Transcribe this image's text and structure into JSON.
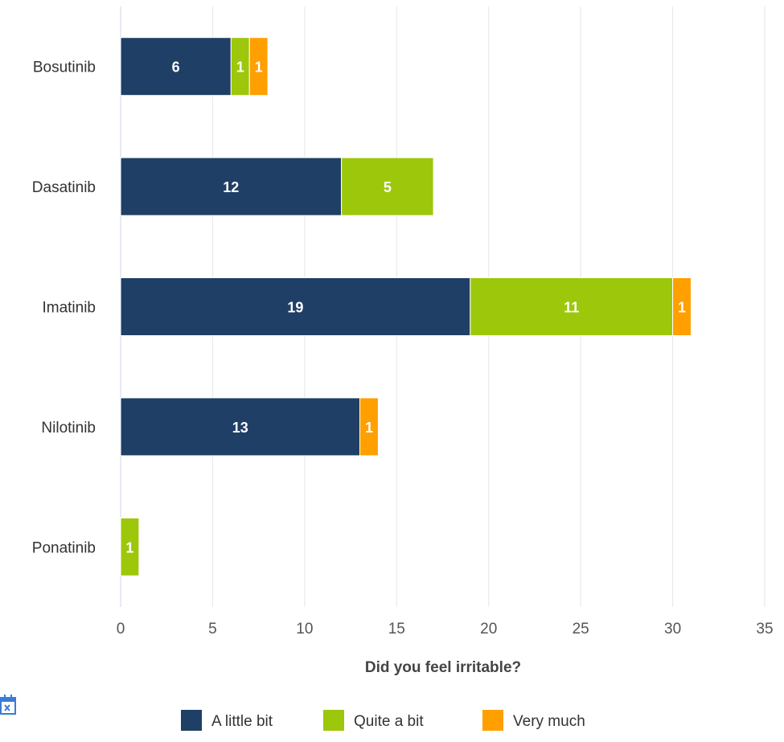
{
  "chart_data": {
    "type": "bar",
    "orientation": "horizontal",
    "stacked": true,
    "categories": [
      "Bosutinib",
      "Dasatinib",
      "Imatinib",
      "Nilotinib",
      "Ponatinib"
    ],
    "series": [
      {
        "name": "A little bit",
        "color": "#1f3f66",
        "values": [
          6,
          12,
          19,
          13,
          0
        ]
      },
      {
        "name": "Quite a bit",
        "color": "#9dc70b",
        "values": [
          1,
          5,
          11,
          0,
          1
        ]
      },
      {
        "name": "Very much",
        "color": "#ff9f00",
        "values": [
          1,
          0,
          1,
          1,
          0
        ]
      }
    ],
    "xlabel": "Did you feel irritable?",
    "ylabel": "",
    "xlim": [
      0,
      35
    ],
    "xticks": [
      0,
      5,
      10,
      15,
      20,
      25,
      30,
      35
    ],
    "grid": true,
    "legend_position": "bottom-center",
    "data_labels": true
  },
  "icons": {
    "corner": "calendar-icon"
  }
}
